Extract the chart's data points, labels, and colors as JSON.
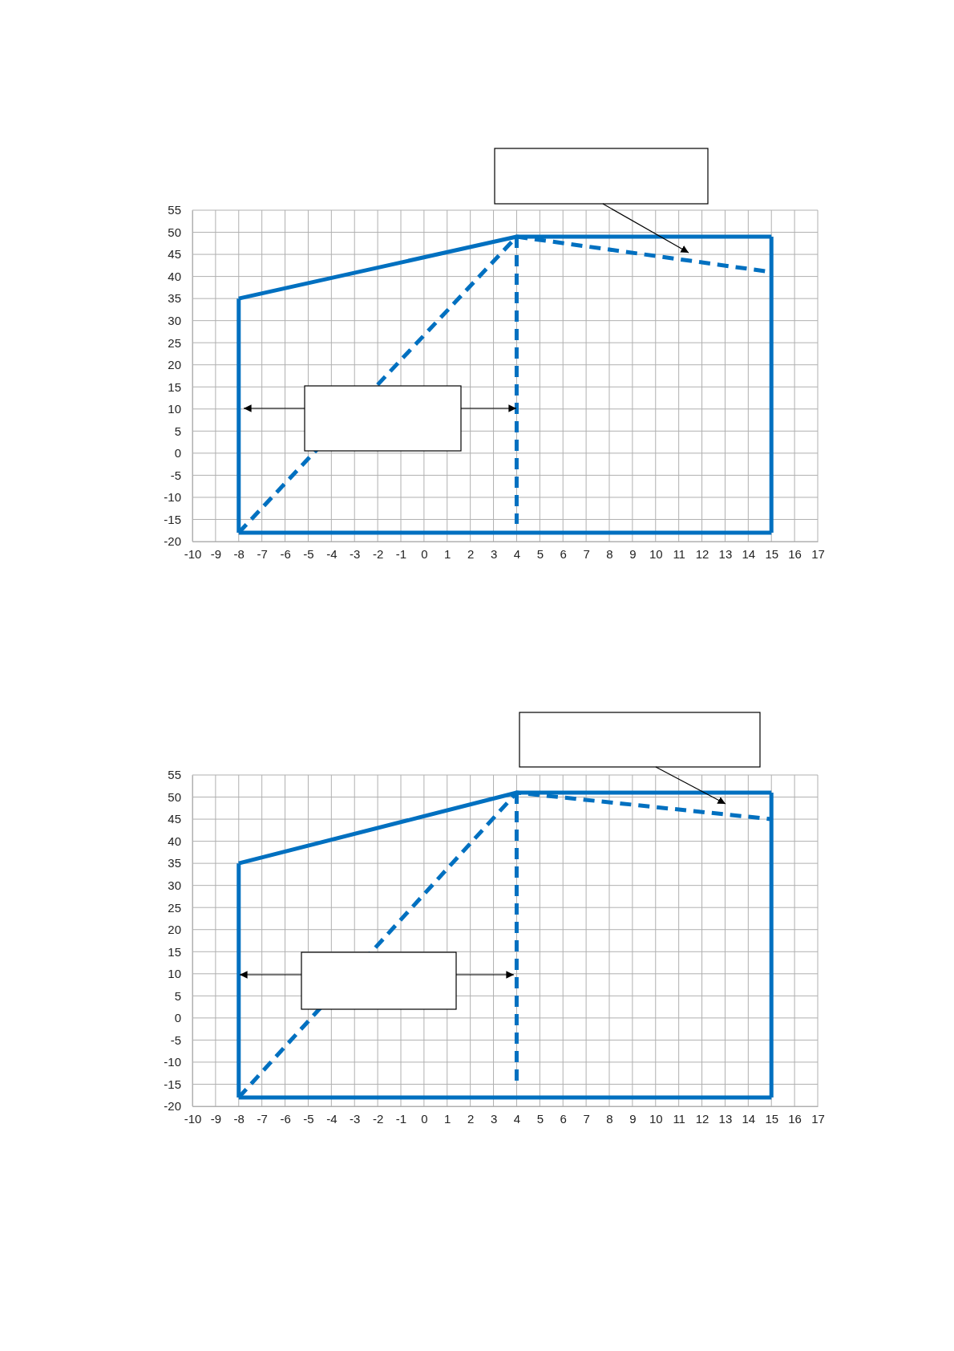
{
  "chart_data": [
    {
      "type": "line",
      "xlim": [
        -10,
        17
      ],
      "ylim": [
        -20,
        55
      ],
      "xticks": [
        -10,
        -9,
        -8,
        -7,
        -6,
        -5,
        -4,
        -3,
        -2,
        -1,
        0,
        1,
        2,
        3,
        4,
        5,
        6,
        7,
        8,
        9,
        10,
        11,
        12,
        13,
        14,
        15,
        16,
        17
      ],
      "yticks": [
        -20,
        -15,
        -10,
        -5,
        0,
        5,
        10,
        15,
        20,
        25,
        30,
        35,
        40,
        45,
        50,
        55
      ],
      "grid": true,
      "marker": "none",
      "series": [
        {
          "color": "#0070c0",
          "line_style": "solid",
          "x": [
            -8,
            4,
            15
          ],
          "values": [
            35,
            49,
            49
          ]
        },
        {
          "color": "#0070c0",
          "line_style": "solid",
          "x": [
            -8,
            15
          ],
          "values": [
            -18,
            -18
          ]
        },
        {
          "color": "#0070c0",
          "line_style": "solid",
          "x": [
            -8,
            -8
          ],
          "values": [
            -18,
            35
          ]
        },
        {
          "color": "#0070c0",
          "line_style": "solid",
          "x": [
            15,
            15
          ],
          "values": [
            49,
            -18
          ]
        },
        {
          "color": "#0070c0",
          "line_style": "dashed",
          "x": [
            -8,
            4,
            15
          ],
          "values": [
            -18,
            49,
            41
          ]
        },
        {
          "color": "#0070c0",
          "line_style": "dashed",
          "x": [
            4,
            4
          ],
          "values": [
            49,
            -16
          ]
        }
      ]
    },
    {
      "type": "line",
      "xlim": [
        -10,
        17
      ],
      "ylim": [
        -20,
        55
      ],
      "xticks": [
        -10,
        -9,
        -8,
        -7,
        -6,
        -5,
        -4,
        -3,
        -2,
        -1,
        0,
        1,
        2,
        3,
        4,
        5,
        6,
        7,
        8,
        9,
        10,
        11,
        12,
        13,
        14,
        15,
        16,
        17
      ],
      "yticks": [
        -20,
        -15,
        -10,
        -5,
        0,
        5,
        10,
        15,
        20,
        25,
        30,
        35,
        40,
        45,
        50,
        55
      ],
      "grid": true,
      "marker": "none",
      "series": [
        {
          "color": "#0070c0",
          "line_style": "solid",
          "x": [
            -8,
            4,
            15
          ],
          "values": [
            35,
            51,
            51
          ]
        },
        {
          "color": "#0070c0",
          "line_style": "solid",
          "x": [
            -8,
            15
          ],
          "values": [
            -18,
            -18
          ]
        },
        {
          "color": "#0070c0",
          "line_style": "solid",
          "x": [
            -8,
            -8
          ],
          "values": [
            -18,
            35
          ]
        },
        {
          "color": "#0070c0",
          "line_style": "solid",
          "x": [
            15,
            15
          ],
          "values": [
            51,
            -18
          ]
        },
        {
          "color": "#0070c0",
          "line_style": "dashed",
          "x": [
            -8,
            4,
            15
          ],
          "values": [
            -18,
            51,
            45
          ]
        },
        {
          "color": "#0070c0",
          "line_style": "dashed",
          "x": [
            4,
            4
          ],
          "values": [
            51,
            -15
          ]
        }
      ]
    }
  ]
}
